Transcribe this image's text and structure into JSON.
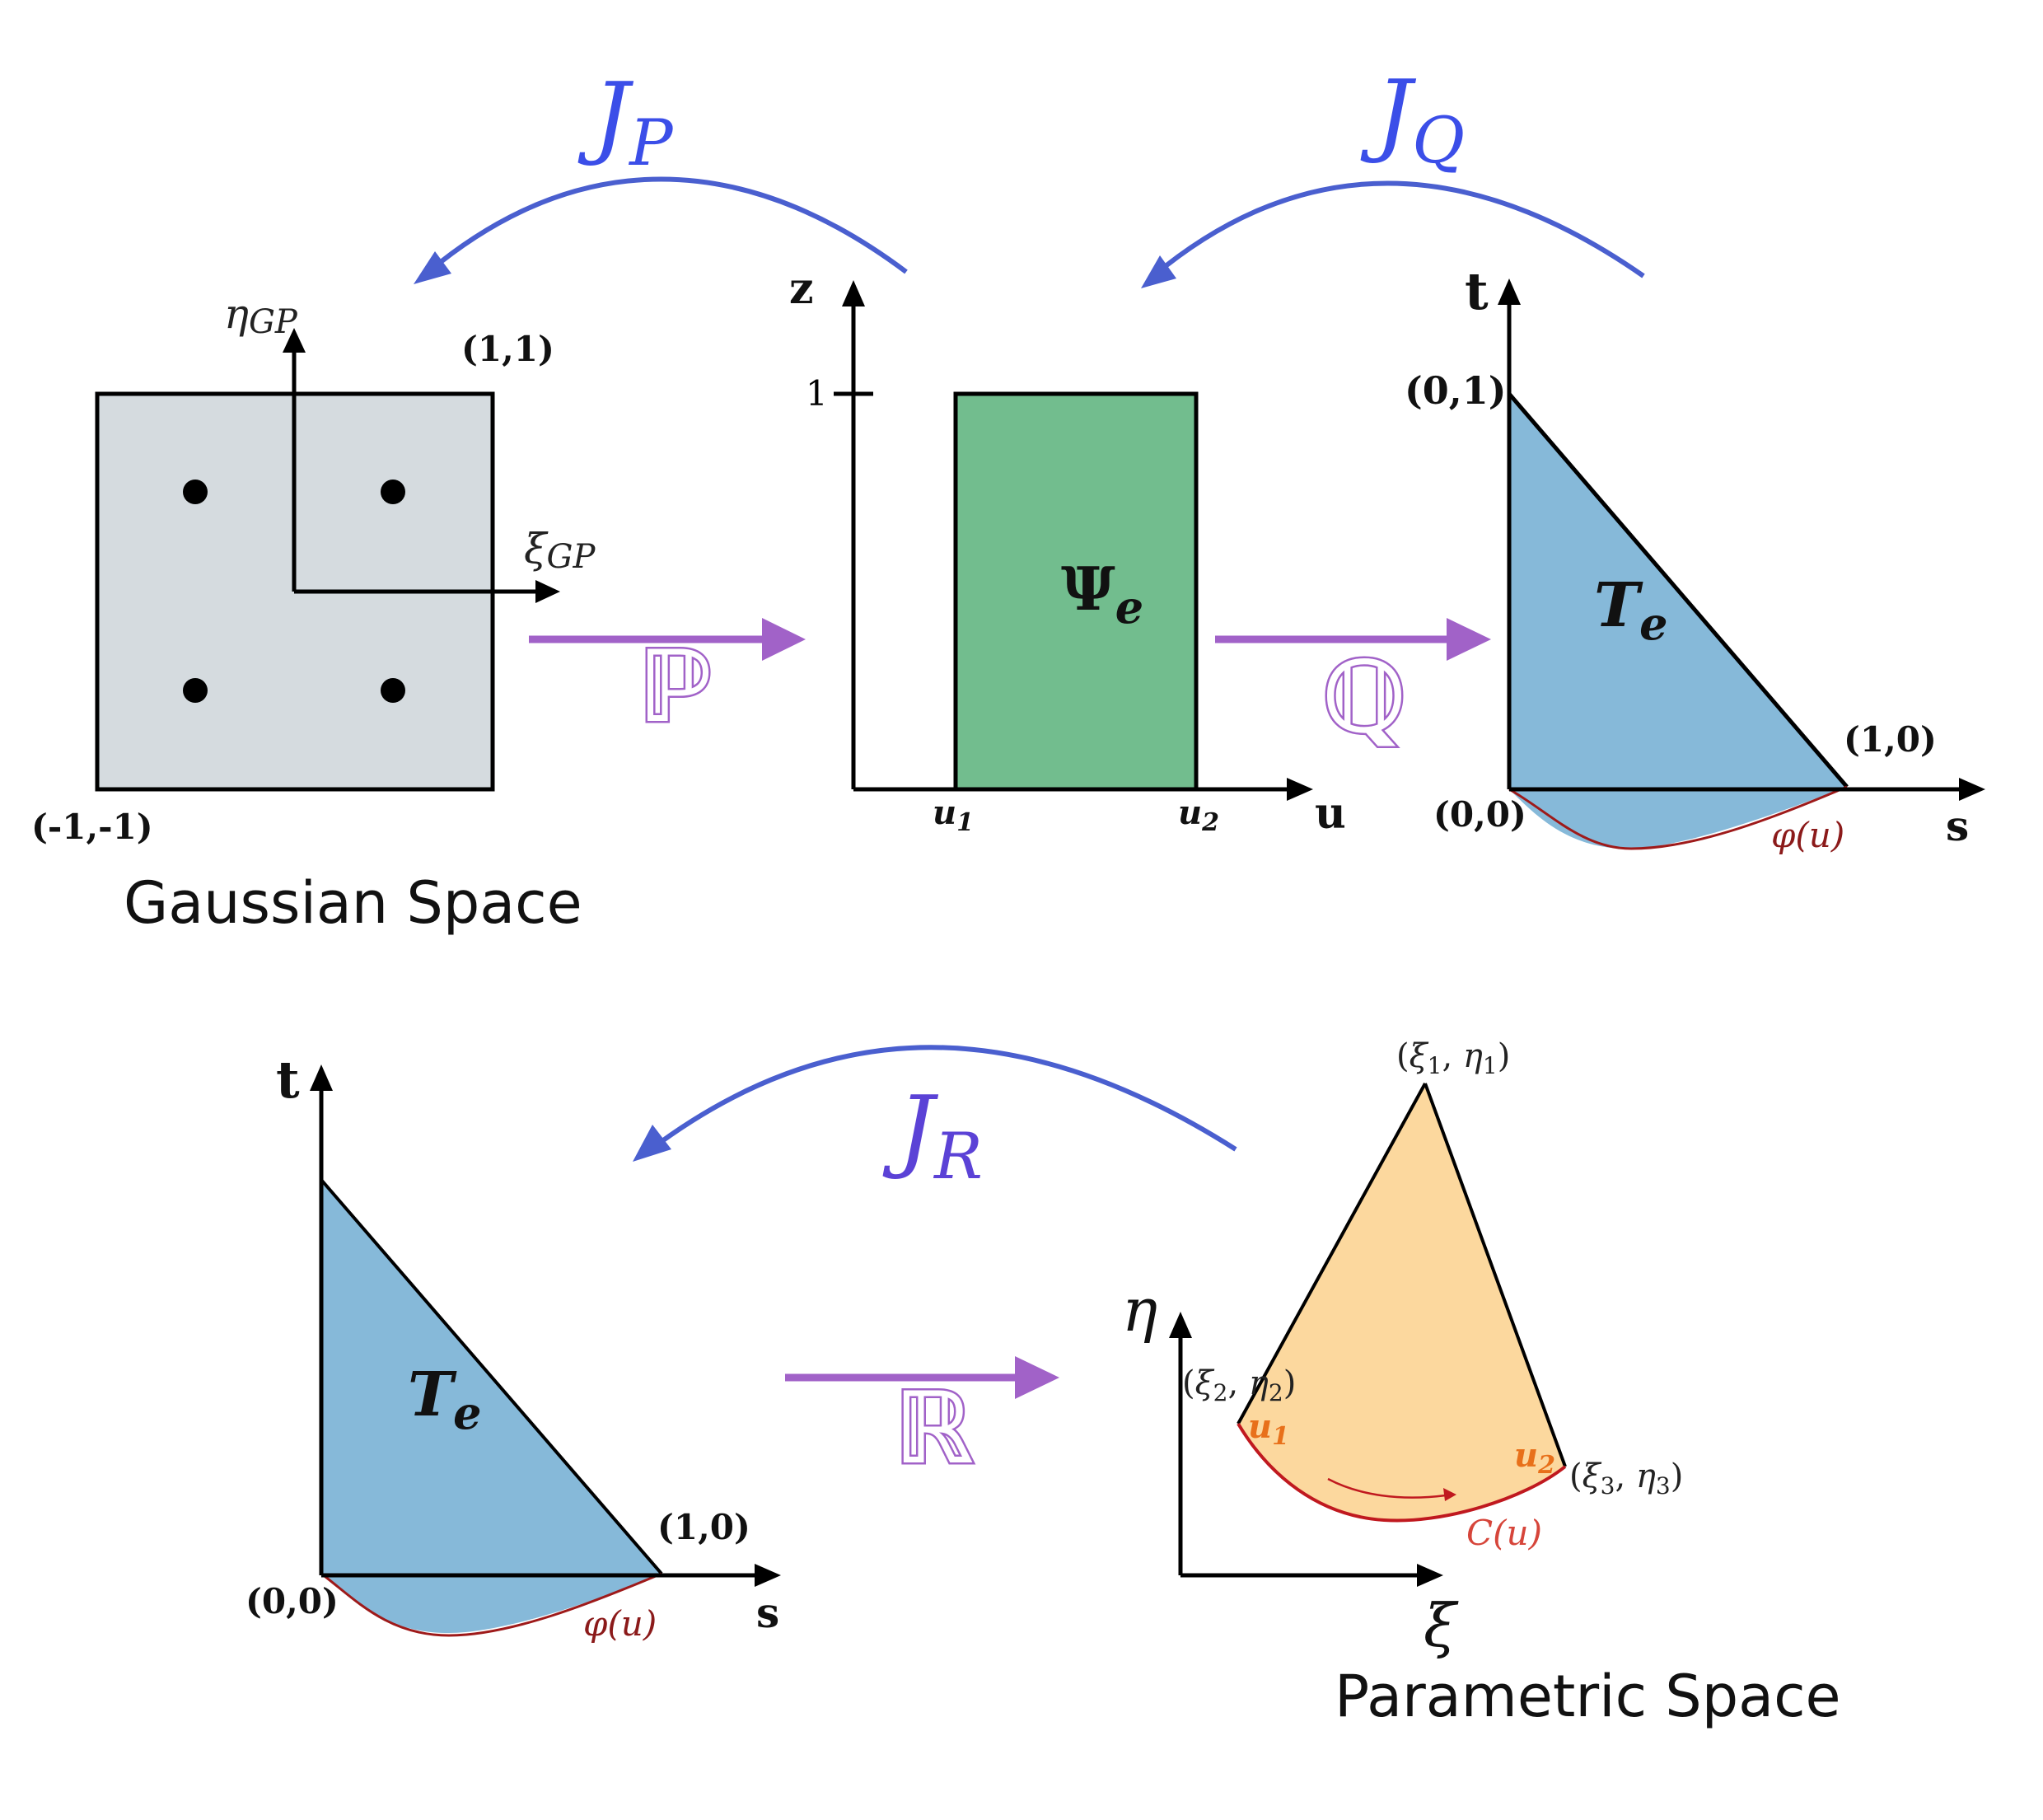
{
  "colors": {
    "jacobian_arrow": "#4a5fcf",
    "jacobian_label": "#3b4ee8",
    "mapping_arrow": "#a162c8",
    "gauss_fill": "#d5dbdf",
    "psi_fill": "#72bd8e",
    "triangle_fill": "#86b9d9",
    "param_fill": "#fcd89e",
    "curve": "#c0191f",
    "curve_label": "#d6453a",
    "phi_label": "#8b1a1a",
    "u_label": "#e8701a"
  },
  "jacobians": {
    "jp": {
      "base": "J",
      "sub": "P"
    },
    "jq": {
      "base": "J",
      "sub": "Q"
    },
    "jr": {
      "base": "J",
      "sub": "R"
    }
  },
  "maps": {
    "p": "ℙ",
    "q": "ℚ",
    "r": "ℝ"
  },
  "gaussian": {
    "eta_axis": {
      "base": "η",
      "sub": "GP"
    },
    "xi_axis": {
      "base": "ξ",
      "sub": "GP"
    },
    "corner_top": "(1,1)",
    "corner_bottom": "(-1,-1)",
    "caption": "Gaussian Space"
  },
  "psi": {
    "z_axis": "z",
    "u_axis": "u",
    "tick_one": "1",
    "label": {
      "base": "Ψ",
      "sub": "e"
    },
    "u1": {
      "base": "u",
      "sub": "1"
    },
    "u2": {
      "base": "u",
      "sub": "2"
    }
  },
  "triangle_top": {
    "t_axis": "t",
    "s_axis": "s",
    "v01": "(0,1)",
    "v10": "(1,0)",
    "v00": "(0,0)",
    "label": {
      "base": "T",
      "sub": "e"
    },
    "phi": "φ(u)"
  },
  "triangle_bottom": {
    "t_axis": "t",
    "s_axis": "s",
    "v10": "(1,0)",
    "v00": "(0,0)",
    "label": {
      "base": "T",
      "sub": "e"
    },
    "phi": "φ(u)"
  },
  "parametric": {
    "eta_axis": "η",
    "xi_axis": "ξ",
    "p1": {
      "a": "ξ",
      "as": "1",
      "b": "η",
      "bs": "1"
    },
    "p2": {
      "a": "ξ",
      "as": "2",
      "b": "η",
      "bs": "2"
    },
    "p3": {
      "a": "ξ",
      "as": "3",
      "b": "η",
      "bs": "3"
    },
    "u1": {
      "base": "u",
      "sub": "1"
    },
    "u2": {
      "base": "u",
      "sub": "2"
    },
    "curve": "C(u)",
    "caption": "Parametric Space"
  }
}
